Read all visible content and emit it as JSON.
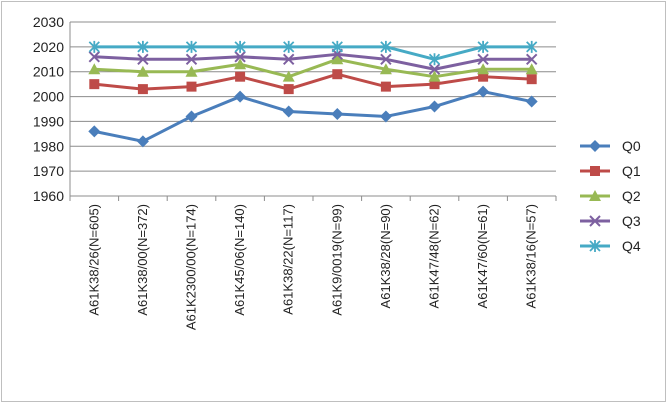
{
  "chart_data": {
    "type": "line",
    "title": "",
    "xlabel": "",
    "ylabel": "",
    "ylim": [
      1960,
      2030
    ],
    "yticks": [
      1960,
      1970,
      1980,
      1990,
      2000,
      2010,
      2020,
      2030
    ],
    "grid": "horizontal",
    "legend_position": "right",
    "categories": [
      "A61K38/26(N=605)",
      "A61K38/00(N=372)",
      "A61K2300/00(N=174)",
      "A61K45/06(N=140)",
      "A61K38/22(N=117)",
      "A61K9/0019(N=99)",
      "A61K38/28(N=90)",
      "A61K47/48(N=62)",
      "A61K47/60(N=61)",
      "A61K38/16(N=57)"
    ],
    "series": [
      {
        "name": "Q0",
        "color": "#4a7ebb",
        "marker": "diamond",
        "values": [
          1986,
          1982,
          1992,
          2000,
          1994,
          1993,
          1992,
          1996,
          2002,
          1998
        ]
      },
      {
        "name": "Q1",
        "color": "#be4b48",
        "marker": "square",
        "values": [
          2005,
          2003,
          2004,
          2008,
          2003,
          2009,
          2004,
          2005,
          2008,
          2007
        ]
      },
      {
        "name": "Q2",
        "color": "#98b954",
        "marker": "triangle",
        "values": [
          2011,
          2010,
          2010,
          2013,
          2008,
          2015,
          2011,
          2008,
          2011,
          2011
        ]
      },
      {
        "name": "Q3",
        "color": "#7d60a0",
        "marker": "x",
        "values": [
          2016,
          2015,
          2015,
          2016,
          2015,
          2017,
          2015,
          2011,
          2015,
          2015
        ]
      },
      {
        "name": "Q4",
        "color": "#46aac5",
        "marker": "star",
        "values": [
          2020,
          2020,
          2020,
          2020,
          2020,
          2020,
          2020,
          2015,
          2020,
          2020
        ]
      }
    ]
  }
}
